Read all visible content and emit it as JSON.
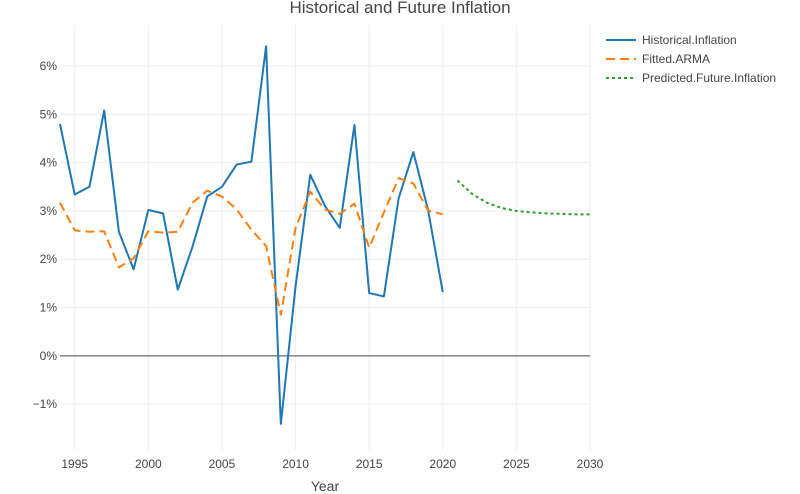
{
  "chart_data": {
    "type": "line",
    "title": "Historical and Future Inflation",
    "xlabel": "Year",
    "ylabel": "",
    "xlim": [
      1994,
      2030
    ],
    "ylim": [
      -1.95,
      6.85
    ],
    "x_ticks": [
      1995,
      2000,
      2005,
      2010,
      2015,
      2020,
      2025,
      2030
    ],
    "x_tick_labels": [
      "1995",
      "2000",
      "2005",
      "2010",
      "2015",
      "2020",
      "2025",
      "2030"
    ],
    "y_ticks": [
      -1,
      0,
      1,
      2,
      3,
      4,
      5,
      6
    ],
    "y_tick_labels": [
      "−1%",
      "0%",
      "1%",
      "2%",
      "3%",
      "4%",
      "5%",
      "6%"
    ],
    "grid": true,
    "zero_line": true,
    "legend_position": "top-right",
    "series": [
      {
        "name": "Historical.Inflation",
        "color": "#1f77b4",
        "dash": "solid",
        "x": [
          1994,
          1995,
          1996,
          1997,
          1998,
          1999,
          2000,
          2001,
          2002,
          2003,
          2004,
          2005,
          2006,
          2007,
          2008,
          2009,
          2010,
          2011,
          2012,
          2013,
          2014,
          2015,
          2016,
          2017,
          2018,
          2019,
          2020
        ],
        "y": [
          4.8,
          3.34,
          3.5,
          5.08,
          2.57,
          1.79,
          3.02,
          2.95,
          1.37,
          2.26,
          3.3,
          3.5,
          3.96,
          4.02,
          6.41,
          -1.41,
          1.44,
          3.75,
          3.1,
          2.65,
          4.78,
          1.3,
          1.23,
          3.26,
          4.22,
          3.02,
          1.32
        ]
      },
      {
        "name": "Fitted.ARMA",
        "color": "#ff7f0e",
        "dash": "dash",
        "x": [
          1994,
          1995,
          1996,
          1997,
          1998,
          1999,
          2000,
          2001,
          2002,
          2003,
          2004,
          2005,
          2006,
          2007,
          2008,
          2009,
          2010,
          2011,
          2012,
          2013,
          2014,
          2015,
          2016,
          2017,
          2018,
          2019,
          2020
        ],
        "y": [
          3.17,
          2.6,
          2.57,
          2.58,
          1.83,
          2.02,
          2.58,
          2.55,
          2.57,
          3.17,
          3.42,
          3.3,
          3.03,
          2.61,
          2.27,
          0.85,
          2.65,
          3.4,
          3.03,
          2.94,
          3.15,
          2.24,
          2.97,
          3.68,
          3.57,
          3.01,
          2.93
        ]
      },
      {
        "name": "Predicted.Future.Inflation",
        "color": "#2ca02c",
        "dash": "dot",
        "x": [
          2021,
          2022,
          2023,
          2024,
          2025,
          2026,
          2027,
          2028,
          2029,
          2030
        ],
        "y": [
          3.63,
          3.35,
          3.17,
          3.06,
          3.0,
          2.97,
          2.95,
          2.94,
          2.93,
          2.93
        ]
      }
    ]
  }
}
